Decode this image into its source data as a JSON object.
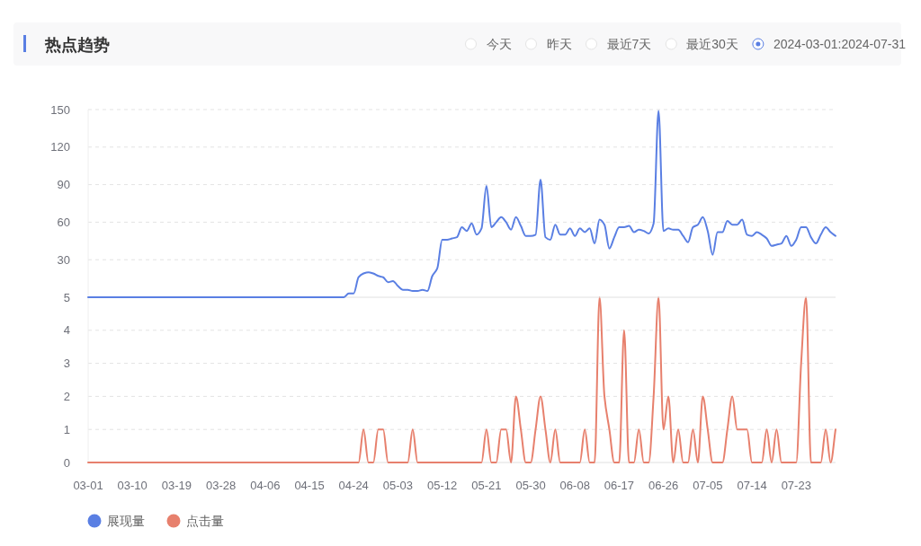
{
  "chart_data": [
    {
      "type": "line",
      "title": "热点趋势",
      "annotations": [
        "今天",
        "昨天",
        "最近7天",
        "最近30天",
        "2024-03-01:2024-07-31"
      ],
      "categories": [
        null,
        null,
        null,
        null,
        null,
        null,
        null,
        null,
        null,
        null,
        null,
        null,
        null,
        null,
        null,
        null,
        null,
        null,
        null,
        null,
        null,
        null,
        null,
        null,
        null,
        null,
        null,
        null,
        null,
        null,
        null,
        null,
        null,
        null,
        null,
        null,
        null,
        null,
        null,
        null,
        null,
        null,
        null,
        null,
        null,
        null,
        null,
        null,
        null,
        null,
        null,
        null,
        null,
        null,
        null,
        null,
        null,
        null,
        null,
        null,
        null,
        null,
        null,
        null,
        null,
        null,
        null,
        null,
        null,
        null,
        null,
        null,
        null,
        null,
        null,
        null,
        null,
        null,
        null,
        null,
        null,
        null,
        null,
        null,
        null,
        null,
        null,
        null,
        null,
        null,
        null,
        null,
        null,
        null,
        null,
        null,
        null,
        null,
        null,
        null,
        null,
        null,
        null,
        null,
        null,
        null,
        null,
        null,
        null,
        null,
        null,
        null,
        null,
        null,
        null,
        null,
        null,
        null,
        null,
        null,
        null,
        null,
        null,
        null,
        null,
        null,
        null,
        null,
        null,
        null,
        null,
        null,
        null,
        null,
        null,
        null,
        null,
        null,
        null,
        null,
        null,
        null,
        null,
        null,
        null,
        null,
        null,
        null,
        null,
        null,
        null,
        null,
        null
      ],
      "series": [
        {
          "name": "展现量",
          "color": "#5a7fe3",
          "values": [
            0,
            0,
            0,
            0,
            0,
            0,
            0,
            0,
            0,
            0,
            0,
            0,
            0,
            0,
            0,
            0,
            0,
            0,
            0,
            0,
            0,
            0,
            0,
            0,
            0,
            0,
            0,
            0,
            0,
            0,
            0,
            0,
            0,
            0,
            0,
            0,
            0,
            0,
            0,
            0,
            0,
            0,
            0,
            0,
            0,
            0,
            0,
            0,
            0,
            0,
            0,
            0,
            0,
            3,
            3,
            16,
            19,
            20,
            19,
            17,
            16,
            12,
            13,
            9,
            6,
            6,
            5,
            5,
            6,
            5,
            17,
            23,
            46,
            46,
            47,
            48,
            56,
            53,
            59,
            50,
            55,
            89,
            56,
            60,
            64,
            60,
            54,
            64,
            57,
            49,
            49,
            50,
            94,
            48,
            46,
            58,
            50,
            50,
            55,
            49,
            55,
            52,
            55,
            43,
            62,
            58,
            39,
            48,
            56,
            56,
            57,
            52,
            54,
            53,
            51,
            59,
            149,
            53,
            55,
            54,
            54,
            49,
            44,
            56,
            58,
            64,
            53,
            34,
            52,
            52,
            61,
            58,
            58,
            62,
            50,
            49,
            52,
            50,
            47,
            41,
            42,
            43,
            49,
            41,
            46,
            56,
            56,
            48,
            43,
            50,
            56,
            52,
            49
          ]
        }
      ],
      "ylim": [
        0,
        150
      ],
      "yticks": [
        30,
        60,
        90,
        120,
        150
      ],
      "grid": "y",
      "legend": "bottom",
      "tick_labels": "y"
    },
    {
      "type": "line",
      "categories": [
        "03-01",
        null,
        null,
        null,
        null,
        null,
        null,
        null,
        null,
        "03-10",
        null,
        null,
        null,
        null,
        null,
        null,
        null,
        null,
        "03-19",
        null,
        null,
        null,
        null,
        null,
        null,
        null,
        null,
        "03-28",
        null,
        null,
        null,
        null,
        null,
        null,
        null,
        null,
        "04-06",
        null,
        null,
        null,
        null,
        null,
        null,
        null,
        null,
        "04-15",
        null,
        null,
        null,
        null,
        null,
        null,
        null,
        null,
        "04-24",
        null,
        null,
        null,
        null,
        null,
        null,
        null,
        null,
        "05-03",
        null,
        null,
        null,
        null,
        null,
        null,
        null,
        null,
        "05-12",
        null,
        null,
        null,
        null,
        null,
        null,
        null,
        null,
        "05-21",
        null,
        null,
        null,
        null,
        null,
        null,
        null,
        null,
        "05-30",
        null,
        null,
        null,
        null,
        null,
        null,
        null,
        null,
        "06-08",
        null,
        null,
        null,
        null,
        null,
        null,
        null,
        null,
        "06-17",
        null,
        null,
        null,
        null,
        null,
        null,
        null,
        null,
        "06-26",
        null,
        null,
        null,
        null,
        null,
        null,
        null,
        null,
        "07-05",
        null,
        null,
        null,
        null,
        null,
        null,
        null,
        null,
        "07-14",
        null,
        null,
        null,
        null,
        null,
        null,
        null,
        null,
        "07-23",
        null,
        null,
        null,
        null,
        null,
        null,
        null,
        null
      ],
      "series": [
        {
          "name": "点击量",
          "color": "#e7806d",
          "values": [
            0,
            0,
            0,
            0,
            0,
            0,
            0,
            0,
            0,
            0,
            0,
            0,
            0,
            0,
            0,
            0,
            0,
            0,
            0,
            0,
            0,
            0,
            0,
            0,
            0,
            0,
            0,
            0,
            0,
            0,
            0,
            0,
            0,
            0,
            0,
            0,
            0,
            0,
            0,
            0,
            0,
            0,
            0,
            0,
            0,
            0,
            0,
            0,
            0,
            0,
            0,
            0,
            0,
            0,
            0,
            0,
            1,
            0,
            0,
            1,
            1,
            0,
            0,
            0,
            0,
            0,
            1,
            0,
            0,
            0,
            0,
            0,
            0,
            0,
            0,
            0,
            0,
            0,
            0,
            0,
            0,
            1,
            0,
            0,
            1,
            1,
            0,
            2,
            1,
            0,
            0,
            1,
            2,
            1,
            0,
            1,
            0,
            0,
            0,
            0,
            0,
            1,
            0,
            0,
            5,
            2,
            1,
            0,
            0,
            4,
            0,
            0,
            1,
            0,
            0,
            2,
            5,
            1,
            2,
            0,
            1,
            0,
            0,
            1,
            0,
            2,
            1,
            0,
            0,
            0,
            1,
            2,
            1,
            1,
            1,
            0,
            0,
            0,
            1,
            0,
            1,
            0,
            0,
            0,
            0,
            3,
            5,
            0,
            0,
            0,
            1,
            0,
            1
          ]
        }
      ],
      "ylim": [
        0,
        5
      ],
      "yticks": [
        0,
        1,
        2,
        3,
        4,
        5
      ],
      "grid": "y",
      "legend": "bottom"
    }
  ]
}
